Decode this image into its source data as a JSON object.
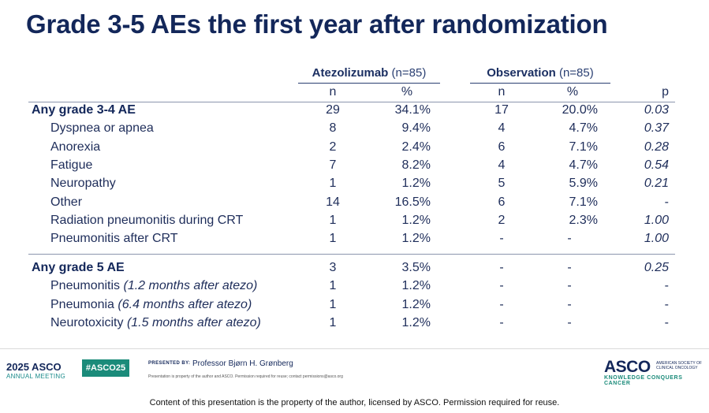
{
  "title": "Grade 3-5 AEs the first year after randomization",
  "table": {
    "groups": {
      "atezo": {
        "name": "Atezolizumab",
        "n": "(n=85)"
      },
      "obs": {
        "name": "Observation",
        "n": "(n=85)"
      }
    },
    "subheaders": {
      "atezo_n": "n",
      "atezo_pct": "%",
      "obs_n": "n",
      "obs_pct": "%",
      "p": "p"
    },
    "section1": {
      "header": {
        "label": "Any grade 3-4 AE",
        "an": "29",
        "ap": "34.1%",
        "on": "17",
        "op": "20.0%",
        "p": "0.03"
      },
      "rows": [
        {
          "label": "Dyspnea or apnea",
          "an": "8",
          "ap": "9.4%",
          "on": "4",
          "op": "4.7%",
          "p": "0.37"
        },
        {
          "label": "Anorexia",
          "an": "2",
          "ap": "2.4%",
          "on": "6",
          "op": "7.1%",
          "p": "0.28"
        },
        {
          "label": "Fatigue",
          "an": "7",
          "ap": "8.2%",
          "on": "4",
          "op": "4.7%",
          "p": "0.54"
        },
        {
          "label": "Neuropathy",
          "an": "1",
          "ap": "1.2%",
          "on": "5",
          "op": "5.9%",
          "p": "0.21"
        },
        {
          "label": "Other",
          "an": "14",
          "ap": "16.5%",
          "on": "6",
          "op": "7.1%",
          "p": "-"
        },
        {
          "label": "Radiation pneumonitis during CRT",
          "an": "1",
          "ap": "1.2%",
          "on": "2",
          "op": "2.3%",
          "p": "1.00"
        },
        {
          "label": "Pneumonitis after CRT",
          "an": "1",
          "ap": "1.2%",
          "on": "-",
          "op": "-",
          "p": "1.00"
        }
      ]
    },
    "section2": {
      "header": {
        "label": "Any grade 5 AE",
        "an": "3",
        "ap": "3.5%",
        "on": "-",
        "op": "-",
        "p": "0.25"
      },
      "rows": [
        {
          "label": "Pneumonitis",
          "note": "(1.2 months after atezo)",
          "an": "1",
          "ap": "1.2%",
          "on": "-",
          "op": "-",
          "p": "-"
        },
        {
          "label": "Pneumonia",
          "note": "(6.4 months after atezo)",
          "an": "1",
          "ap": "1.2%",
          "on": "-",
          "op": "-",
          "p": "-"
        },
        {
          "label": "Neurotoxicity",
          "note": "(1.5 months after atezo)",
          "an": "1",
          "ap": "1.2%",
          "on": "-",
          "op": "-",
          "p": "-"
        }
      ]
    }
  },
  "footer": {
    "year": "2025 ASCO",
    "meeting": "ANNUAL MEETING",
    "hashtag": "#ASCO25",
    "presented_by": "PRESENTED BY:",
    "presenter": "Professor Bjørn H. Grønberg",
    "property_note": "Presentation is property of the author and ASCO. Permission required for reuse; contact permissions@asco.org",
    "logo": "ASCO",
    "society": "AMERICAN SOCIETY OF CLINICAL ONCOLOGY",
    "tagline": "KNOWLEDGE CONQUERS CANCER",
    "bottom_note": "Content of this presentation is the property of the author, licensed by ASCO. Permission required for reuse."
  },
  "colors": {
    "title": "#13275a",
    "text": "#1e2d5a",
    "accent": "#1b8b7a"
  }
}
